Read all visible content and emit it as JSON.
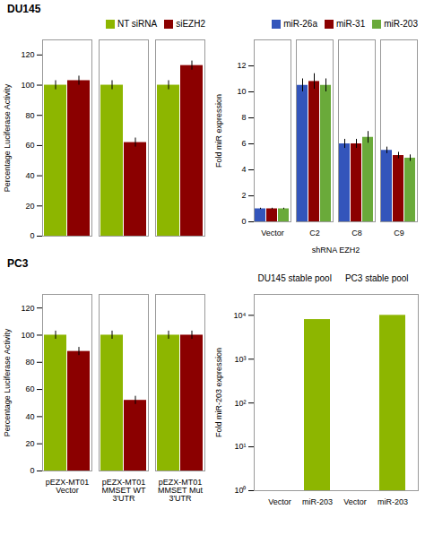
{
  "chart_data": [
    {
      "type": "bar",
      "title": "DU145",
      "categories": [
        null,
        null,
        null
      ],
      "series": [
        {
          "name": "NT siRNA",
          "color": "#8db600",
          "values": [
            100,
            100,
            100
          ],
          "errors": [
            3,
            3,
            3
          ]
        },
        {
          "name": "siEZH2",
          "color": "#8b0000",
          "values": [
            103,
            62,
            113
          ],
          "errors": [
            3,
            3,
            3
          ]
        }
      ],
      "ylabel": "Percentage Luciferase Activity",
      "ylim": [
        0,
        130
      ],
      "yticks": [
        0,
        20,
        40,
        60,
        80,
        100,
        120
      ],
      "legend": "upper right"
    },
    {
      "type": "bar",
      "title": "PC3",
      "categories": [
        "pEZX-MT01\nVector",
        "pEZX-MT01\nMMSET WT\n3'UTR",
        "pEZX-MT01\nMMSET Mut\n3'UTR"
      ],
      "series": [
        {
          "name": "NT siRNA",
          "color": "#8db600",
          "values": [
            100,
            100,
            100
          ],
          "errors": [
            3,
            3,
            3
          ]
        },
        {
          "name": "siEZH2",
          "color": "#8b0000",
          "values": [
            88,
            52,
            100
          ],
          "errors": [
            3,
            3,
            3
          ]
        }
      ],
      "ylabel": "Percentage Luciferase Activity",
      "ylim": [
        0,
        130
      ],
      "yticks": [
        0,
        20,
        40,
        60,
        80,
        100,
        120
      ]
    },
    {
      "type": "bar",
      "categories": [
        "Vector",
        "C2",
        "C8",
        "C9"
      ],
      "series": [
        {
          "name": "miR-26a",
          "color": "#3355bb",
          "values": [
            1.0,
            10.5,
            6.0,
            5.5
          ],
          "errors": [
            0.05,
            0.5,
            0.35,
            0.25
          ]
        },
        {
          "name": "miR-31",
          "color": "#8b0000",
          "values": [
            1.0,
            10.8,
            6.0,
            5.1
          ],
          "errors": [
            0.05,
            0.6,
            0.35,
            0.25
          ]
        },
        {
          "name": "miR-203",
          "color": "#6aaa3a",
          "values": [
            1.0,
            10.5,
            6.5,
            4.9
          ],
          "errors": [
            0.05,
            0.5,
            0.45,
            0.25
          ]
        }
      ],
      "xlabel": "shRNA EZH2",
      "ylabel": "Fold miR expression",
      "ylim": [
        0,
        14
      ],
      "yticks": [
        0,
        2,
        4,
        6,
        8,
        10,
        12
      ],
      "legend": "upper right"
    },
    {
      "type": "bar",
      "categories": [
        "Vector",
        "miR-203",
        "Vector",
        "miR-203"
      ],
      "values": [
        1,
        8000,
        1,
        10000
      ],
      "color": "#8db600",
      "ylabel": "Fold miR-203 expression",
      "log": "y",
      "ylim": [
        1,
        30000
      ],
      "yticks": [
        {
          "value": 1,
          "label": "10⁰"
        },
        {
          "value": 10,
          "label": "10¹"
        },
        {
          "value": 100,
          "label": "10²"
        },
        {
          "value": 1000,
          "label": "10³"
        },
        {
          "value": 10000,
          "label": "10⁴"
        }
      ],
      "annotations": [
        "DU145 stable pool",
        "PC3 stable pool"
      ]
    }
  ]
}
